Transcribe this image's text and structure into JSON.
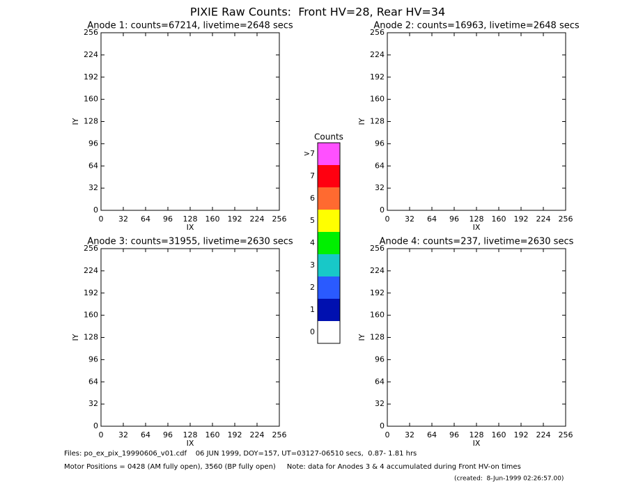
{
  "title": "PIXIE Raw Counts:  Front HV=28, Rear HV=34",
  "chart_data": [
    {
      "type": "heatmap",
      "title": "Anode 1: counts=67214, livetime=2648 secs",
      "xlabel": "IX",
      "ylabel": "IY",
      "xlim": [
        0,
        256
      ],
      "ylim": [
        0,
        256
      ],
      "xticks": [
        0,
        32,
        64,
        96,
        128,
        160,
        192,
        224,
        256
      ],
      "yticks": [
        0,
        32,
        64,
        96,
        128,
        160,
        192,
        224,
        256
      ]
    },
    {
      "type": "heatmap",
      "title": "Anode 2: counts=16963, livetime=2648 secs",
      "xlabel": "IX",
      "ylabel": "IY",
      "xlim": [
        0,
        256
      ],
      "ylim": [
        0,
        256
      ],
      "xticks": [
        0,
        32,
        64,
        96,
        128,
        160,
        192,
        224,
        256
      ],
      "yticks": [
        0,
        32,
        64,
        96,
        128,
        160,
        192,
        224,
        256
      ]
    },
    {
      "type": "heatmap",
      "title": "Anode 3: counts=31955, livetime=2630 secs",
      "xlabel": "IX",
      "ylabel": "IY",
      "xlim": [
        0,
        256
      ],
      "ylim": [
        0,
        256
      ],
      "xticks": [
        0,
        32,
        64,
        96,
        128,
        160,
        192,
        224,
        256
      ],
      "yticks": [
        0,
        32,
        64,
        96,
        128,
        160,
        192,
        224,
        256
      ]
    },
    {
      "type": "heatmap",
      "title": "Anode 4: counts=237, livetime=2630 secs",
      "xlabel": "IX",
      "ylabel": "IY",
      "xlim": [
        0,
        256
      ],
      "ylim": [
        0,
        256
      ],
      "xticks": [
        0,
        32,
        64,
        96,
        128,
        160,
        192,
        224,
        256
      ],
      "yticks": [
        0,
        32,
        64,
        96,
        128,
        160,
        192,
        224,
        256
      ]
    }
  ],
  "colorbar": {
    "title": "Counts",
    "labels": [
      0,
      1,
      2,
      3,
      4,
      5,
      6,
      7,
      ">7"
    ],
    "colors": [
      "#ffffff",
      "#0010b0",
      "#2a5aff",
      "#18c8c8",
      "#00f000",
      "#ffff00",
      "#ff6a30",
      "#ff0010",
      "#ff50ff"
    ]
  },
  "footer": {
    "files": "Files: po_ex_pix_19990606_v01.cdf    06 JUN 1999, DOY=157, UT=03127-06510 secs,  0.87- 1.81 hrs",
    "motor": "Motor Positions = 0428 (AM fully open), 3560 (BP fully open)     Note: data for Anodes 3 & 4 accumulated during Front HV-on times",
    "created": "(created:  8-Jun-1999 02:26:57.00)"
  }
}
